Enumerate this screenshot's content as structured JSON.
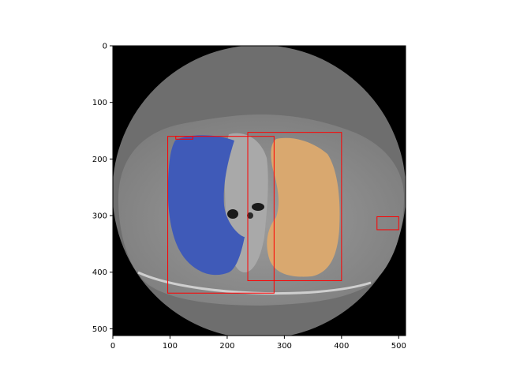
{
  "axes": {
    "x_ticks": [
      "0",
      "100",
      "200",
      "300",
      "400",
      "500"
    ],
    "y_ticks": [
      "0",
      "100",
      "200",
      "300",
      "400",
      "500"
    ],
    "xlim": [
      0,
      512
    ],
    "ylim": [
      512,
      0
    ],
    "origin": "upper"
  },
  "image": {
    "description_scene": "axial chest CT slice",
    "overlay_colors": {
      "right_lung_mask": "#3f5ab8",
      "left_lung_mask": "#d9a86f",
      "bounding_box": "#ff0000"
    }
  },
  "boxes": [
    {
      "label_id": "box-1",
      "x0": 96,
      "y0": 160,
      "x1": 282,
      "y1": 437
    },
    {
      "label_id": "box-2",
      "x0": 236,
      "y0": 153,
      "x1": 400,
      "y1": 415
    },
    {
      "label_id": "box-3",
      "x0": 462,
      "y0": 302,
      "x1": 500,
      "y1": 325
    },
    {
      "label_id": "box-4",
      "x0": 110,
      "y0": 160,
      "x1": 140,
      "y1": 165
    }
  ]
}
